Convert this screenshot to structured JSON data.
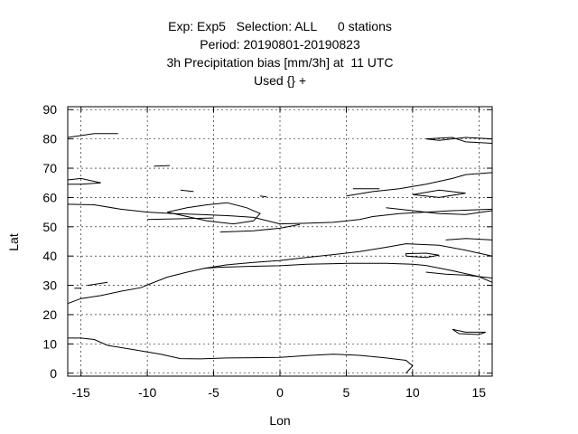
{
  "chart_data": {
    "type": "line",
    "title_lines": [
      "Exp: Exp5   Selection: ALL      0 stations",
      "Period: 20190801-20190823",
      "3h Precipitation bias [mm/3h] at  11 UTC",
      "Used {} +"
    ],
    "xlabel": "Lon",
    "ylabel": "Lat",
    "xlim": [
      -16,
      16
    ],
    "ylim": [
      -1,
      91
    ],
    "xticks": [
      -15,
      -10,
      -5,
      0,
      5,
      10,
      15
    ],
    "yticks": [
      0,
      10,
      20,
      30,
      40,
      50,
      60,
      70,
      80,
      90
    ],
    "grid": true,
    "series": [
      {
        "points": [
          [
            -16,
            23.8
          ],
          [
            -15,
            25.5
          ],
          [
            -13.5,
            26.5
          ],
          [
            -12,
            28
          ],
          [
            -10.5,
            29.2
          ],
          [
            -9.8,
            30.5
          ],
          [
            -8.5,
            32.8
          ],
          [
            -7,
            34.5
          ],
          [
            -5.7,
            35.8
          ],
          [
            -4.5,
            36.2
          ],
          [
            -2,
            36.5
          ],
          [
            0,
            36.7
          ],
          [
            2,
            37.2
          ],
          [
            5,
            37.5
          ],
          [
            8,
            37.5
          ],
          [
            10,
            37.2
          ],
          [
            11,
            36.8
          ],
          [
            13,
            35
          ],
          [
            15,
            33
          ],
          [
            16,
            31
          ]
        ]
      },
      {
        "points": [
          [
            -5.7,
            35.8
          ],
          [
            -4,
            37
          ],
          [
            -2,
            37.8
          ],
          [
            0,
            38.5
          ],
          [
            2,
            39.5
          ],
          [
            4,
            40.5
          ],
          [
            6,
            41.5
          ],
          [
            8,
            43
          ],
          [
            9.5,
            44.2
          ],
          [
            12,
            43.7
          ],
          [
            14,
            42
          ],
          [
            16,
            40
          ]
        ]
      },
      {
        "points": [
          [
            -16,
            12
          ],
          [
            -15,
            12
          ],
          [
            -14,
            11.5
          ],
          [
            -13,
            9.5
          ],
          [
            -11,
            8
          ],
          [
            -9,
            6.5
          ],
          [
            -7.5,
            5
          ],
          [
            -6,
            4.9
          ],
          [
            -4,
            5.2
          ],
          [
            -2,
            5.3
          ],
          [
            0,
            5.4
          ],
          [
            2,
            6
          ],
          [
            4,
            6.5
          ],
          [
            6,
            6.1
          ],
          [
            8,
            5.2
          ],
          [
            9.5,
            4.4
          ],
          [
            10,
            2.5
          ],
          [
            9.7,
            1
          ],
          [
            9.5,
            0
          ]
        ]
      },
      {
        "points": [
          [
            -16,
            57.7
          ],
          [
            -14,
            57.5
          ],
          [
            -12,
            56
          ],
          [
            -10,
            55
          ],
          [
            -8,
            54.5
          ],
          [
            -6,
            54.2
          ],
          [
            -4,
            53.8
          ],
          [
            -2,
            53.2
          ],
          [
            0,
            51
          ],
          [
            2,
            51.2
          ],
          [
            4,
            51.5
          ],
          [
            6,
            52.5
          ],
          [
            7,
            53.5
          ],
          [
            9,
            54.5
          ],
          [
            11,
            55
          ],
          [
            13,
            55.5
          ],
          [
            16,
            56
          ]
        ]
      },
      {
        "points": [
          [
            -4.5,
            48.2
          ],
          [
            -2,
            48.6
          ],
          [
            0,
            49.5
          ],
          [
            1.5,
            50.8
          ]
        ]
      },
      {
        "points": [
          [
            -8.5,
            55
          ],
          [
            -7,
            56.5
          ],
          [
            -5.5,
            57.5
          ],
          [
            -4,
            58.2
          ],
          [
            -2.5,
            56.5
          ],
          [
            -1.5,
            54.5
          ],
          [
            -2,
            52
          ],
          [
            -3.5,
            51
          ],
          [
            -5.5,
            52
          ],
          [
            -7,
            53.5
          ],
          [
            -8.5,
            55
          ]
        ]
      },
      {
        "points": [
          [
            -16,
            80.5
          ],
          [
            -14,
            81.8
          ],
          [
            -12.2,
            81.8
          ]
        ]
      },
      {
        "points": [
          [
            -16,
            66
          ],
          [
            -15,
            66.5
          ],
          [
            -13.5,
            65
          ],
          [
            -15,
            64.5
          ],
          [
            -16,
            64.5
          ]
        ]
      },
      {
        "points": [
          [
            5,
            60.5
          ],
          [
            7,
            62
          ],
          [
            9,
            63
          ],
          [
            11,
            64.5
          ],
          [
            13,
            66.5
          ],
          [
            14,
            67.8
          ],
          [
            16,
            68.5
          ]
        ]
      },
      {
        "points": [
          [
            10,
            61
          ],
          [
            12,
            62.5
          ],
          [
            14,
            61.5
          ],
          [
            12,
            60
          ],
          [
            10,
            61
          ]
        ]
      },
      {
        "points": [
          [
            11,
            80
          ],
          [
            13,
            80.5
          ],
          [
            14,
            79
          ],
          [
            16,
            78.5
          ],
          [
            16,
            80
          ],
          [
            14,
            80.5
          ],
          [
            12,
            79.5
          ],
          [
            11,
            80
          ]
        ]
      },
      {
        "points": [
          [
            8,
            56.5
          ],
          [
            10,
            55.5
          ],
          [
            12,
            54.5
          ],
          [
            14,
            54.2
          ],
          [
            16,
            55.5
          ]
        ]
      },
      {
        "points": [
          [
            13,
            15
          ],
          [
            14,
            14
          ],
          [
            15.5,
            14
          ],
          [
            15,
            13.2
          ],
          [
            13.5,
            13.5
          ],
          [
            13,
            15
          ]
        ]
      },
      {
        "points": [
          [
            9.5,
            40
          ],
          [
            11,
            39.5
          ],
          [
            12,
            40.3
          ],
          [
            11,
            41
          ],
          [
            9.5,
            40.8
          ],
          [
            9.5,
            40
          ]
        ]
      },
      {
        "points": [
          [
            12.5,
            45.5
          ],
          [
            14,
            46
          ],
          [
            16,
            45.5
          ]
        ]
      },
      {
        "points": [
          [
            11,
            34.5
          ],
          [
            12.5,
            33.8
          ],
          [
            14,
            33.5
          ],
          [
            16,
            32.5
          ]
        ]
      },
      {
        "points": [
          [
            -9.5,
            70.7
          ],
          [
            -8.3,
            70.9
          ]
        ]
      },
      {
        "points": [
          [
            -15.5,
            29
          ],
          [
            -15,
            29
          ]
        ]
      },
      {
        "points": [
          [
            -14.5,
            30
          ],
          [
            -13,
            31
          ]
        ]
      },
      {
        "points": [
          [
            -7.5,
            62.5
          ],
          [
            -6.5,
            62
          ]
        ]
      },
      {
        "points": [
          [
            -1.5,
            60.5
          ],
          [
            -1,
            60.2
          ]
        ]
      },
      {
        "points": [
          [
            5.5,
            63
          ],
          [
            7.5,
            63
          ]
        ]
      },
      {
        "points": [
          [
            -10,
            52.5
          ],
          [
            -7,
            52.8
          ],
          [
            -5,
            53
          ]
        ]
      }
    ]
  }
}
